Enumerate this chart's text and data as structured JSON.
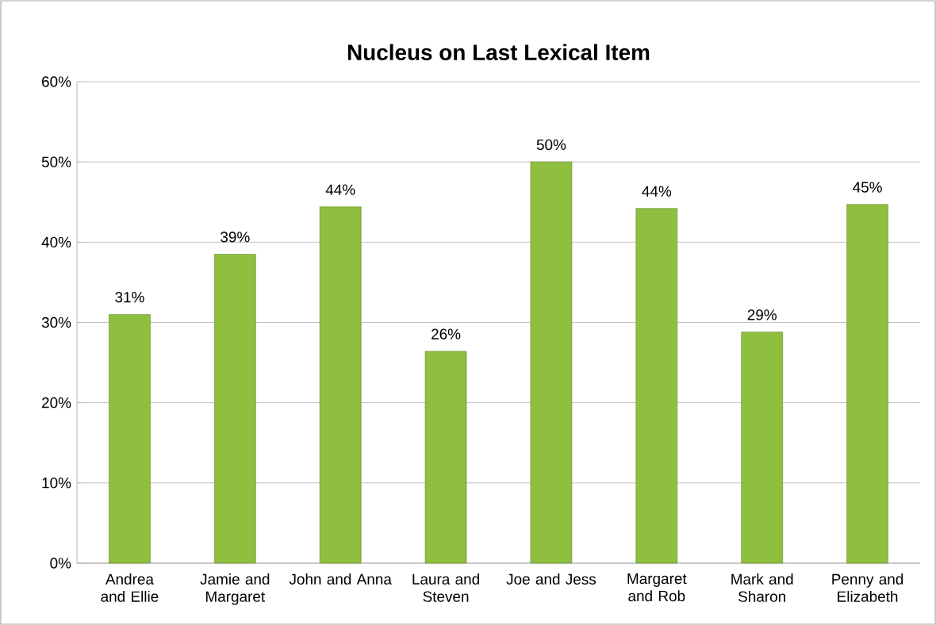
{
  "chart_data": {
    "type": "bar",
    "title": "Nucleus on Last Lexical Item",
    "categories": [
      "Andrea and Ellie",
      "Jamie and Margaret",
      "John and Anna",
      "Laura and Steven",
      "Joe and Jess",
      "Margaret and Rob",
      "Mark and Sharon",
      "Penny and Elizabeth"
    ],
    "values": [
      31,
      38.5,
      44.4,
      26.4,
      50,
      44.2,
      28.8,
      44.7
    ],
    "value_labels": [
      "31%",
      "39%",
      "44%",
      "26%",
      "50%",
      "44%",
      "29%",
      "45%"
    ],
    "color": "#8fbf3f",
    "ylim": [
      0,
      60
    ],
    "yticks": [
      {
        "value": 0,
        "label": "0%"
      },
      {
        "value": 10,
        "label": "10%"
      },
      {
        "value": 20,
        "label": "20%"
      },
      {
        "value": 30,
        "label": "30%"
      },
      {
        "value": 40,
        "label": "40%"
      },
      {
        "value": 50,
        "label": "50%"
      },
      {
        "value": 60,
        "label": "60%"
      }
    ],
    "grid": "y"
  }
}
